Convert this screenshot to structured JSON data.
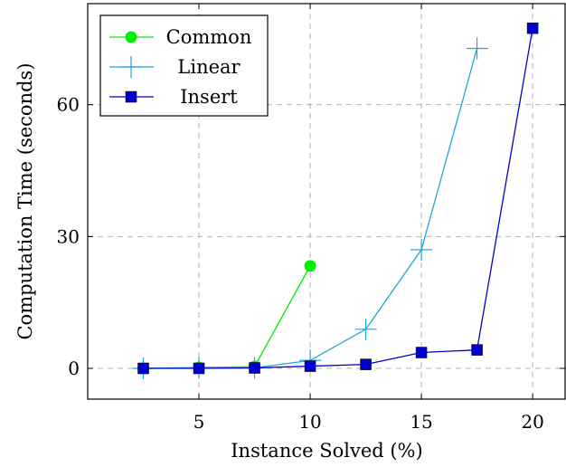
{
  "chart_data": {
    "type": "line",
    "title": "",
    "xlabel": "Instance Solved (%)",
    "ylabel": "Computation Time (seconds)",
    "xlim": [
      0,
      21.5
    ],
    "ylim": [
      -7,
      83
    ],
    "xticks": [
      5,
      10,
      15,
      20
    ],
    "yticks": [
      0,
      30,
      60
    ],
    "grid": true,
    "grid_style": "dashed",
    "legend_position": "top-left",
    "series": [
      {
        "name": "Common",
        "color": "#00ee00",
        "marker": "circle",
        "x": [
          2.5,
          5,
          7.5,
          10
        ],
        "y": [
          0.0,
          0.2,
          0.4,
          23.3
        ]
      },
      {
        "name": "Linear",
        "color": "#1fa8d8",
        "marker": "plus",
        "x": [
          2.5,
          5,
          7.5,
          10,
          12.5,
          15,
          17.5
        ],
        "y": [
          0.0,
          0.1,
          0.1,
          1.8,
          8.9,
          27.0,
          72.8
        ]
      },
      {
        "name": "Insert",
        "color": "#0000cc",
        "marker": "square",
        "x": [
          2.5,
          5,
          7.5,
          10,
          12.5,
          15,
          17.5,
          20
        ],
        "y": [
          0.0,
          0.0,
          0.1,
          0.5,
          0.9,
          3.6,
          4.2,
          77.4
        ]
      }
    ]
  }
}
